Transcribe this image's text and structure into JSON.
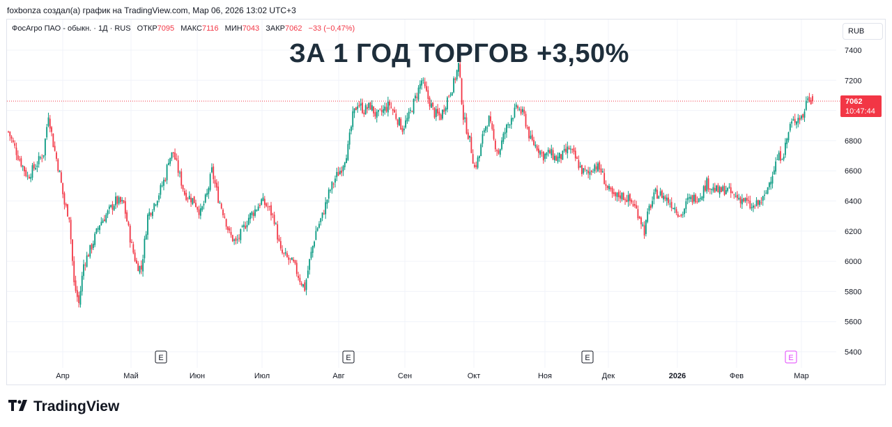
{
  "caption": "foxbonza создал(а) график на TradingView.com, Мар 06, 2026 13:02 UTC+3",
  "headline": "ЗА 1 ГОД ТОРГОВ +3,50%",
  "legend": {
    "symbol": "ФосАгро ПАО - обыкн. · 1Д · RUS",
    "open_label": "ОТКР",
    "open_value": "7095",
    "high_label": "МАКС",
    "high_value": "7116",
    "low_label": "МИН",
    "low_value": "7043",
    "close_label": "ЗАКР",
    "close_value": "7062",
    "change": "−33 (−0,47%)"
  },
  "currency": "RUB",
  "price_badge": {
    "price": "7062",
    "countdown": "10:47:44"
  },
  "brand": "TradingView",
  "colors": {
    "up": "#089981",
    "down": "#f23645",
    "grid": "#f0f3fa",
    "event": "#131722",
    "event_future": "#e040fb"
  },
  "chart_data": {
    "type": "candlestick",
    "y_axis": {
      "ticks": [
        5400,
        5600,
        5800,
        6000,
        6200,
        6400,
        6600,
        6800,
        7000,
        7200,
        7400
      ],
      "range": [
        5330,
        7460
      ],
      "position": "right"
    },
    "x_axis": {
      "labels": [
        "Апр",
        "Май",
        "Июн",
        "Июл",
        "Авг",
        "Сен",
        "Окт",
        "Ноя",
        "Дек",
        "2026",
        "Фев",
        "Мар"
      ]
    },
    "last_price_line": 7062,
    "events": [
      {
        "label": "E",
        "month": "Май",
        "future": false
      },
      {
        "label": "E",
        "month": "Авг",
        "future": false
      },
      {
        "label": "E",
        "month": "Ноя",
        "future": false
      },
      {
        "label": "E",
        "month": "Мар",
        "future": true
      }
    ],
    "path_points": [
      [
        0,
        6860
      ],
      [
        6,
        6700
      ],
      [
        12,
        6560
      ],
      [
        18,
        6650
      ],
      [
        22,
        6720
      ],
      [
        25,
        6980
      ],
      [
        28,
        6780
      ],
      [
        32,
        6580
      ],
      [
        35,
        6380
      ],
      [
        38,
        6300
      ],
      [
        41,
        5850
      ],
      [
        44,
        5720
      ],
      [
        47,
        5980
      ],
      [
        52,
        6100
      ],
      [
        57,
        6250
      ],
      [
        62,
        6320
      ],
      [
        67,
        6400
      ],
      [
        72,
        6380
      ],
      [
        77,
        6100
      ],
      [
        80,
        5980
      ],
      [
        83,
        5950
      ],
      [
        87,
        6300
      ],
      [
        90,
        6360
      ],
      [
        94,
        6450
      ],
      [
        98,
        6560
      ],
      [
        100,
        6680
      ],
      [
        103,
        6720
      ],
      [
        106,
        6600
      ],
      [
        110,
        6450
      ],
      [
        116,
        6400
      ],
      [
        120,
        6320
      ],
      [
        124,
        6440
      ],
      [
        127,
        6600
      ],
      [
        131,
        6420
      ],
      [
        135,
        6300
      ],
      [
        138,
        6180
      ],
      [
        142,
        6120
      ],
      [
        146,
        6200
      ],
      [
        150,
        6290
      ],
      [
        154,
        6340
      ],
      [
        158,
        6400
      ],
      [
        162,
        6360
      ],
      [
        166,
        6280
      ],
      [
        170,
        6060
      ],
      [
        174,
        6020
      ],
      [
        178,
        5980
      ],
      [
        182,
        5880
      ],
      [
        185,
        5820
      ],
      [
        188,
        6000
      ],
      [
        192,
        6200
      ],
      [
        196,
        6300
      ],
      [
        200,
        6450
      ],
      [
        204,
        6550
      ],
      [
        208,
        6620
      ],
      [
        212,
        6750
      ],
      [
        215,
        6960
      ],
      [
        218,
        7050
      ],
      [
        222,
        7000
      ],
      [
        226,
        7030
      ],
      [
        230,
        6960
      ],
      [
        234,
        7000
      ],
      [
        238,
        7040
      ],
      [
        242,
        6960
      ],
      [
        246,
        6880
      ],
      [
        250,
        6960
      ],
      [
        254,
        7080
      ],
      [
        258,
        7200
      ],
      [
        262,
        7080
      ],
      [
        266,
        6980
      ],
      [
        270,
        6960
      ],
      [
        274,
        7080
      ],
      [
        278,
        7180
      ],
      [
        281,
        7300
      ],
      [
        284,
        6960
      ],
      [
        288,
        6800
      ],
      [
        291,
        6620
      ],
      [
        294,
        6700
      ],
      [
        297,
        6880
      ],
      [
        300,
        6940
      ],
      [
        303,
        6800
      ],
      [
        306,
        6720
      ],
      [
        310,
        6860
      ],
      [
        314,
        6960
      ],
      [
        318,
        7020
      ],
      [
        322,
        6960
      ],
      [
        326,
        6800
      ],
      [
        330,
        6760
      ],
      [
        334,
        6700
      ],
      [
        338,
        6720
      ],
      [
        342,
        6680
      ],
      [
        346,
        6700
      ],
      [
        350,
        6750
      ],
      [
        354,
        6680
      ],
      [
        358,
        6600
      ],
      [
        362,
        6580
      ],
      [
        366,
        6640
      ],
      [
        370,
        6600
      ],
      [
        374,
        6480
      ],
      [
        378,
        6420
      ],
      [
        382,
        6440
      ],
      [
        386,
        6420
      ],
      [
        390,
        6380
      ],
      [
        394,
        6300
      ],
      [
        397,
        6200
      ],
      [
        400,
        6350
      ],
      [
        404,
        6450
      ],
      [
        408,
        6440
      ],
      [
        412,
        6400
      ],
      [
        416,
        6360
      ],
      [
        420,
        6300
      ],
      [
        424,
        6400
      ],
      [
        428,
        6420
      ],
      [
        432,
        6440
      ],
      [
        436,
        6520
      ],
      [
        440,
        6480
      ],
      [
        444,
        6460
      ],
      [
        448,
        6480
      ],
      [
        452,
        6440
      ],
      [
        456,
        6420
      ],
      [
        460,
        6400
      ],
      [
        464,
        6350
      ],
      [
        468,
        6380
      ],
      [
        472,
        6420
      ],
      [
        476,
        6560
      ],
      [
        480,
        6680
      ],
      [
        484,
        6720
      ],
      [
        488,
        6900
      ],
      [
        492,
        6950
      ],
      [
        496,
        6960
      ],
      [
        499,
        7100
      ],
      [
        502,
        7062
      ]
    ]
  }
}
